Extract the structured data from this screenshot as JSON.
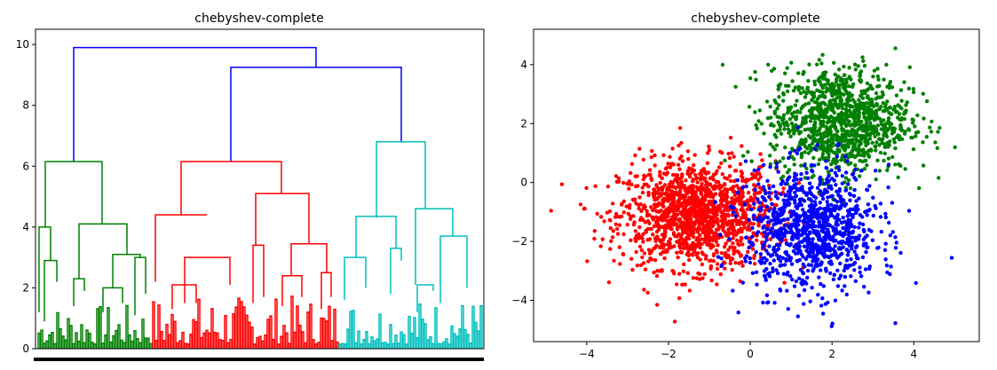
{
  "chart_data": [
    {
      "type": "dendrogram",
      "title": "chebyshev-complete",
      "ylim": [
        0,
        10.5
      ],
      "yticks": [
        0,
        2,
        4,
        6,
        8,
        10
      ],
      "leaf_count": 3000,
      "link_colors": [
        "#008000",
        "#ff0000",
        "#00bfbf",
        "#0000ff"
      ],
      "clusters": [
        {
          "color": "#008000",
          "top_merge_height": 6.15,
          "leaf_share": 0.25
        },
        {
          "color": "#ff0000",
          "top_merge_height": 6.15,
          "leaf_share": 0.42
        },
        {
          "color": "#00bfbf",
          "top_merge_height": 6.8,
          "leaf_share": 0.33
        }
      ],
      "merges": [
        {
          "left": "red",
          "right": "cyan",
          "height": 9.25,
          "color": "#0000ff"
        },
        {
          "left": "green",
          "right": "red+cyan",
          "height": 9.9,
          "color": "#0000ff"
        }
      ],
      "grid": false
    },
    {
      "type": "scatter",
      "title": "chebyshev-complete",
      "xlim": [
        -5.3,
        5.6
      ],
      "ylim": [
        -5.4,
        5.2
      ],
      "xticks": [
        -4,
        -2,
        0,
        2,
        4
      ],
      "yticks": [
        -4,
        -2,
        0,
        2,
        4
      ],
      "grid": false,
      "series": [
        {
          "color": "#ff0000",
          "center": [
            -1.3,
            -1.1
          ],
          "spread": [
            0.95,
            0.9
          ],
          "count": 1400
        },
        {
          "color": "#008000",
          "center": [
            2.2,
            2.1
          ],
          "spread": [
            0.85,
            0.9
          ],
          "count": 1100
        },
        {
          "color": "#0000ff",
          "center": [
            1.5,
            -1.6
          ],
          "spread": [
            0.8,
            1.05
          ],
          "count": 1000
        }
      ]
    }
  ]
}
